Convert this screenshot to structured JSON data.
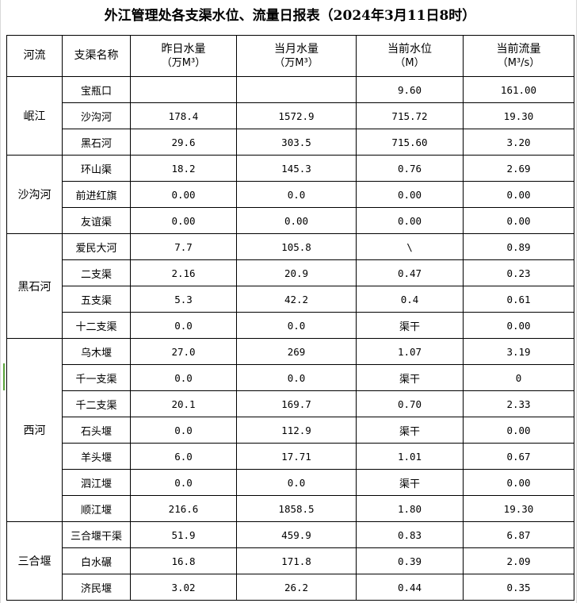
{
  "title": "外江管理处各支渠水位、流量日报表（2024年3月11日8时）",
  "headers": [
    {
      "line1": "河流",
      "line2": ""
    },
    {
      "line1": "支渠名称",
      "line2": ""
    },
    {
      "line1": "昨日水量",
      "line2": "（万M³）"
    },
    {
      "line1": "当月水量",
      "line2": "（万M³）"
    },
    {
      "line1": "当前水位",
      "line2": "（M）"
    },
    {
      "line1": "当前流量",
      "line2": "（M³/s）"
    }
  ],
  "groups": [
    {
      "river": "岷江",
      "rows": [
        [
          "宝瓶口",
          "",
          "",
          "9.60",
          "161.00"
        ],
        [
          "沙沟河",
          "178.4",
          "1572.9",
          "715.72",
          "19.30"
        ],
        [
          "黑石河",
          "29.6",
          "303.5",
          "715.60",
          "3.20"
        ]
      ]
    },
    {
      "river": "沙沟河",
      "rows": [
        [
          "环山渠",
          "18.2",
          "145.3",
          "0.76",
          "2.69"
        ],
        [
          "前进红旗",
          "0.00",
          "0.0",
          "0.00",
          "0.00"
        ],
        [
          "友谊渠",
          "0.00",
          "0.00",
          "0.00",
          "0.00"
        ]
      ]
    },
    {
      "river": "黑石河",
      "rows": [
        [
          "爱民大河",
          "7.7",
          "105.8",
          "\\",
          "0.89"
        ],
        [
          "二支渠",
          "2.16",
          "20.9",
          "0.47",
          "0.23"
        ],
        [
          "五支渠",
          "5.3",
          "42.2",
          "0.4",
          "0.61"
        ],
        [
          "十二支渠",
          "0.0",
          "0.0",
          "渠干",
          "0.00"
        ]
      ]
    },
    {
      "river": "西河",
      "rows": [
        [
          "乌木堰",
          "27.0",
          "269",
          "1.07",
          "3.19"
        ],
        [
          "千一支渠",
          "0.0",
          "0.0",
          "渠干",
          "0"
        ],
        [
          "千二支渠",
          "20.1",
          "169.7",
          "0.70",
          "2.33"
        ],
        [
          "石头堰",
          "0.0",
          "112.9",
          "渠干",
          "0.00"
        ],
        [
          "羊头堰",
          "6.0",
          "17.71",
          "1.01",
          "0.67"
        ],
        [
          "泗江堰",
          "0.0",
          "0.0",
          "渠干",
          "0.00"
        ],
        [
          "顺江堰",
          "216.6",
          "1858.5",
          "1.80",
          "19.30"
        ]
      ]
    },
    {
      "river": "三合堰",
      "rows": [
        [
          "三合堰干渠",
          "51.9",
          "459.9",
          "0.83",
          "6.87"
        ],
        [
          "白水碾",
          "16.8",
          "171.8",
          "0.39",
          "2.09"
        ],
        [
          "济民堰",
          "3.02",
          "26.2",
          "0.44",
          "0.35"
        ]
      ]
    }
  ]
}
